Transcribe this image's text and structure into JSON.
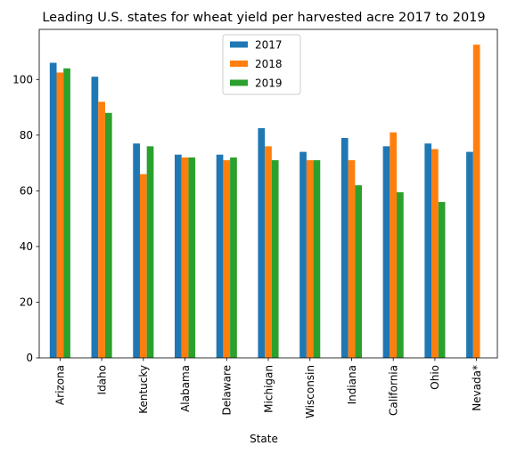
{
  "chart_data": {
    "type": "bar",
    "title": "Leading U.S. states for wheat yield per harvested acre 2017 to 2019",
    "xlabel": "State",
    "ylabel": "",
    "ylim": [
      0,
      118
    ],
    "yticks": [
      0,
      20,
      40,
      60,
      80,
      100
    ],
    "categories": [
      "Arizona",
      "Idaho",
      "Kentucky",
      "Alabama",
      "Delaware",
      "Michigan",
      "Wisconsin",
      "Indiana",
      "California",
      "Ohio",
      "Nevada*"
    ],
    "series": [
      {
        "name": "2017",
        "color": "#1f77b4",
        "values": [
          106,
          101,
          77,
          73,
          73,
          82.5,
          74,
          79,
          76,
          77,
          74
        ]
      },
      {
        "name": "2018",
        "color": "#ff7f0e",
        "values": [
          102.5,
          92,
          66,
          72,
          71,
          76,
          71,
          71,
          81,
          75,
          112.5
        ]
      },
      {
        "name": "2019",
        "color": "#2ca02c",
        "values": [
          104,
          88,
          76,
          72,
          72,
          71,
          71,
          62,
          59.5,
          56,
          null
        ]
      }
    ],
    "legend_position": "upper-center",
    "grid": false
  }
}
